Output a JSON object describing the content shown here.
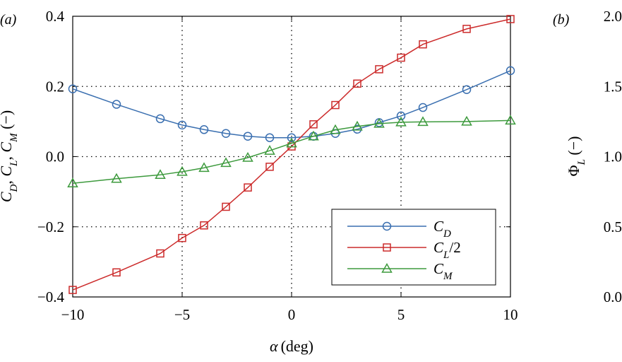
{
  "panels": {
    "a_label": "(a)",
    "b_label": "(b)"
  },
  "axes_a": {
    "xlabel_symbol": "α",
    "xlabel_unit": "(deg)",
    "ylabel": "C_D, C_L, C_M (−)",
    "xticks": [
      "−10",
      "−5",
      "0",
      "5",
      "10"
    ],
    "yticks": [
      "0.4",
      "0.2",
      "0.0",
      "−0.2",
      "−0.4"
    ]
  },
  "axes_b": {
    "ylabel": "Φ_L (−)",
    "yticks": [
      "2.0",
      "1.5",
      "1.0",
      "0.5",
      "0.0"
    ]
  },
  "legend": {
    "placement": "lower-right",
    "entries": [
      "C_D",
      "C_L/2",
      "C_M"
    ]
  },
  "colors": {
    "cd": "#3a6fb0",
    "cl": "#cc2b2b",
    "cm": "#3d9a3d"
  },
  "chart_data": [
    {
      "type": "line",
      "panel": "a",
      "xlabel": "α (deg)",
      "ylabel": "C_D, C_L, C_M (−)",
      "xlim": [
        -10,
        10
      ],
      "ylim": [
        -0.4,
        0.4
      ],
      "grid": "dotted",
      "series": [
        {
          "name": "C_D",
          "marker": "circle",
          "x": [
            -10,
            -8,
            -6,
            -5,
            -4,
            -3,
            -2,
            -1,
            0,
            1,
            2,
            3,
            4,
            5,
            6,
            8,
            10
          ],
          "y": [
            0.193,
            0.149,
            0.108,
            0.09,
            0.077,
            0.066,
            0.058,
            0.054,
            0.054,
            0.058,
            0.066,
            0.078,
            0.097,
            0.116,
            0.14,
            0.191,
            0.245
          ]
        },
        {
          "name": "C_L/2",
          "marker": "square",
          "x": [
            -10,
            -8,
            -6,
            -5,
            -4,
            -3,
            -2,
            -1,
            0,
            1,
            2,
            3,
            4,
            5,
            6,
            8,
            10
          ],
          "y": [
            -0.38,
            -0.33,
            -0.276,
            -0.232,
            -0.196,
            -0.143,
            -0.088,
            -0.029,
            0.029,
            0.092,
            0.147,
            0.208,
            0.249,
            0.282,
            0.32,
            0.364,
            0.392
          ]
        },
        {
          "name": "C_M",
          "marker": "triangle",
          "x": [
            -10,
            -8,
            -6,
            -5,
            -4,
            -3,
            -2,
            -1,
            0,
            1,
            2,
            3,
            4,
            5,
            6,
            8,
            10
          ],
          "y": [
            -0.076,
            -0.063,
            -0.052,
            -0.043,
            -0.032,
            -0.018,
            -0.003,
            0.017,
            0.038,
            0.058,
            0.076,
            0.086,
            0.094,
            0.098,
            0.099,
            0.1,
            0.103
          ]
        }
      ]
    },
    {
      "type": "line",
      "panel": "b",
      "ylabel": "Φ_L (−)",
      "ylim": [
        0.0,
        2.0
      ],
      "series": []
    }
  ]
}
